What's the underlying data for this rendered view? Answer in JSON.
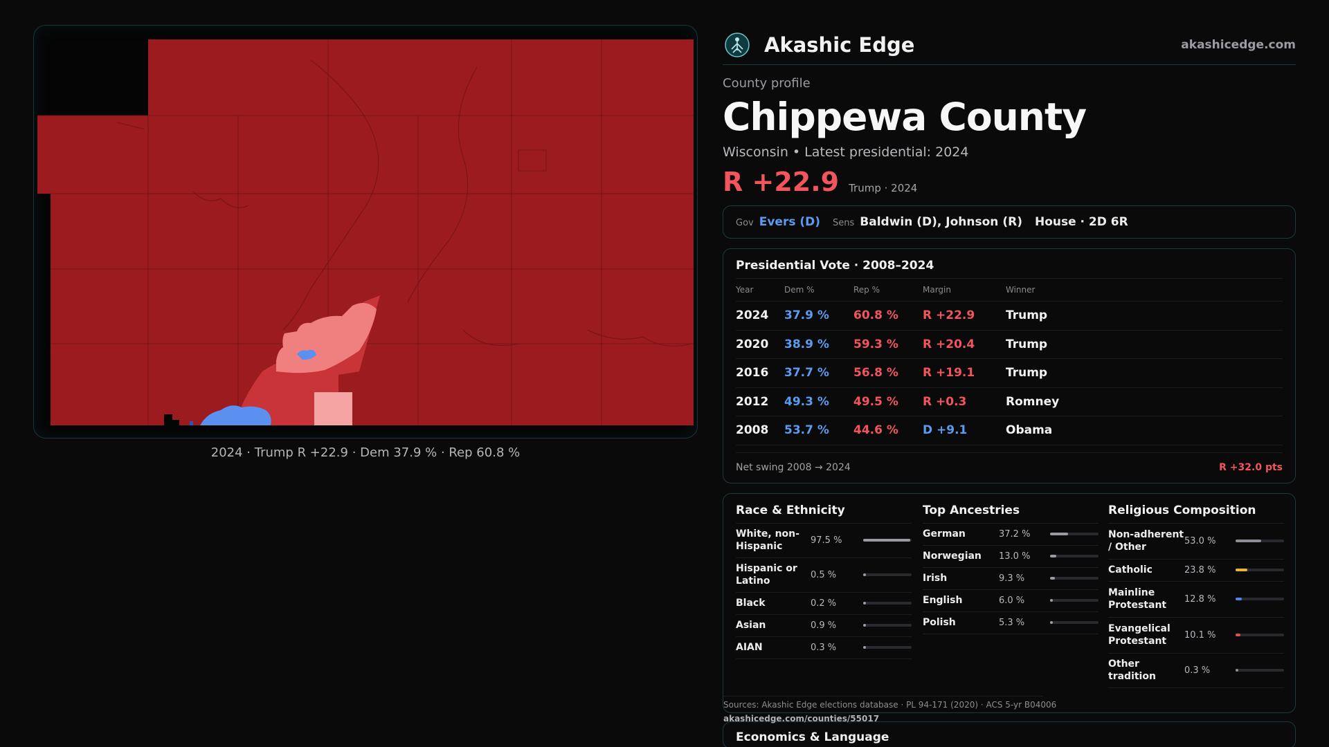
{
  "brand": {
    "name": "Akashic Edge",
    "url": "akashicedge.com"
  },
  "profile": {
    "kicker": "County profile",
    "county": "Chippewa County",
    "subline": "Wisconsin • Latest presidential: 2024",
    "margin": "R +22.9",
    "margin_note": "Trump · 2024"
  },
  "officials": {
    "gov_label": "Gov",
    "gov_value": "Evers (D)",
    "sens_label": "Sens",
    "sens_value": "Baldwin (D), Johnson (R)",
    "house_value": "House · 2D 6R"
  },
  "map": {
    "caption": "2024 · Trump R +22.9 · Dem 37.9 % · Rep 60.8 %",
    "colors": {
      "safe_r": "#9c1b1f",
      "lean_r": "#c93438",
      "tilt_r": "#f08080",
      "light_r": "#f6a3a3",
      "dem": "#5b8ff0",
      "dark_dem": "#2a55c8"
    }
  },
  "presidential": {
    "title": "Presidential Vote · 2008–2024",
    "headers": {
      "year": "Year",
      "dem": "Dem %",
      "rep": "Rep %",
      "margin": "Margin",
      "winner": "Winner"
    },
    "rows": [
      {
        "year": "2024",
        "dem": "37.9 %",
        "rep": "60.8 %",
        "margin": "R +22.9",
        "side": "r",
        "winner": "Trump"
      },
      {
        "year": "2020",
        "dem": "38.9 %",
        "rep": "59.3 %",
        "margin": "R +20.4",
        "side": "r",
        "winner": "Trump"
      },
      {
        "year": "2016",
        "dem": "37.7 %",
        "rep": "56.8 %",
        "margin": "R +19.1",
        "side": "r",
        "winner": "Trump"
      },
      {
        "year": "2012",
        "dem": "49.3 %",
        "rep": "49.5 %",
        "margin": "R +0.3",
        "side": "r",
        "winner": "Romney"
      },
      {
        "year": "2008",
        "dem": "53.7 %",
        "rep": "44.6 %",
        "margin": "D +9.1",
        "side": "d",
        "winner": "Obama"
      }
    ],
    "swing_label": "Net swing 2008 → 2024",
    "swing_value": "R +32.0 pts"
  },
  "race": {
    "title": "Race & Ethnicity",
    "bar_color": "#9a9aa4",
    "rows": [
      {
        "label": "White, non-Hispanic",
        "pct": "97.5 %",
        "value": 97.5
      },
      {
        "label": "Hispanic or Latino",
        "pct": "0.5 %",
        "value": 0.5
      },
      {
        "label": "Black",
        "pct": "0.2 %",
        "value": 0.2
      },
      {
        "label": "Asian",
        "pct": "0.9 %",
        "value": 0.9
      },
      {
        "label": "AIAN",
        "pct": "0.3 %",
        "value": 0.3
      }
    ]
  },
  "ancestry": {
    "title": "Top Ancestries",
    "bar_color": "#9a9aa4",
    "rows": [
      {
        "label": "German",
        "pct": "37.2 %",
        "value": 37.2
      },
      {
        "label": "Norwegian",
        "pct": "13.0 %",
        "value": 13.0
      },
      {
        "label": "Irish",
        "pct": "9.3 %",
        "value": 9.3
      },
      {
        "label": "English",
        "pct": "6.0 %",
        "value": 6.0
      },
      {
        "label": "Polish",
        "pct": "5.3 %",
        "value": 5.3
      }
    ]
  },
  "religion": {
    "title": "Religious Composition",
    "rows": [
      {
        "label": "Non-adherent / Other",
        "pct": "53.0 %",
        "value": 53.0,
        "color": "#8e8e96"
      },
      {
        "label": "Catholic",
        "pct": "23.8 %",
        "value": 23.8,
        "color": "#e8b43a"
      },
      {
        "label": "Mainline Protestant",
        "pct": "12.8 %",
        "value": 12.8,
        "color": "#4d86e8"
      },
      {
        "label": "Evangelical Protestant",
        "pct": "10.1 %",
        "value": 10.1,
        "color": "#e0504f"
      },
      {
        "label": "Other tradition",
        "pct": "0.3 %",
        "value": 0.3,
        "color": "#8e8e96"
      }
    ]
  },
  "sources": {
    "text": "Sources: Akashic Edge elections database · PL 94-171 (2020) · ACS 5-yr B04006",
    "url": "akashicedge.com/counties/55017"
  },
  "economics": {
    "title": "Economics & Language"
  }
}
